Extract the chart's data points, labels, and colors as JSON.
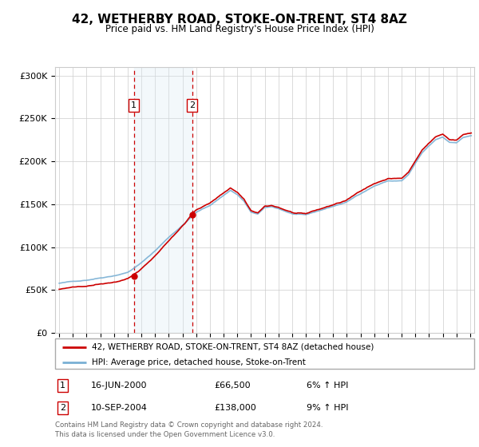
{
  "title": "42, WETHERBY ROAD, STOKE-ON-TRENT, ST4 8AZ",
  "subtitle": "Price paid vs. HM Land Registry's House Price Index (HPI)",
  "legend_line1": "42, WETHERBY ROAD, STOKE-ON-TRENT, ST4 8AZ (detached house)",
  "legend_line2": "HPI: Average price, detached house, Stoke-on-Trent",
  "footer1": "Contains HM Land Registry data © Crown copyright and database right 2024.",
  "footer2": "This data is licensed under the Open Government Licence v3.0.",
  "transaction1_label": "1",
  "transaction1_date": "16-JUN-2000",
  "transaction1_price": "£66,500",
  "transaction1_hpi": "6% ↑ HPI",
  "transaction2_label": "2",
  "transaction2_date": "10-SEP-2004",
  "transaction2_price": "£138,000",
  "transaction2_hpi": "9% ↑ HPI",
  "transaction1_x": 2000.46,
  "transaction1_y": 66500,
  "transaction2_x": 2004.71,
  "transaction2_y": 138000,
  "red_color": "#cc0000",
  "blue_color": "#7ab0d4",
  "shading_color": "#daeaf5",
  "background_color": "#ffffff",
  "grid_color": "#cccccc",
  "ylim_min": 0,
  "ylim_max": 310000,
  "xlim_min": 1994.7,
  "xlim_max": 2025.3,
  "yticks": [
    0,
    50000,
    100000,
    150000,
    200000,
    250000,
    300000
  ],
  "ytick_labels": [
    "£0",
    "£50K",
    "£100K",
    "£150K",
    "£200K",
    "£250K",
    "£300K"
  ],
  "xticks": [
    1995,
    1996,
    1997,
    1998,
    1999,
    2000,
    2001,
    2002,
    2003,
    2004,
    2005,
    2006,
    2007,
    2008,
    2009,
    2010,
    2011,
    2012,
    2013,
    2014,
    2015,
    2016,
    2017,
    2018,
    2019,
    2020,
    2021,
    2022,
    2023,
    2024,
    2025
  ]
}
